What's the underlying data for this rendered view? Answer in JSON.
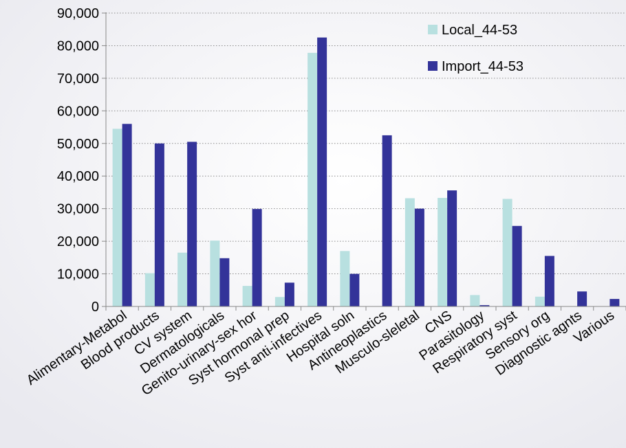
{
  "chart_data": {
    "type": "bar",
    "title": "",
    "xlabel": "",
    "ylabel": "",
    "ylim": [
      0,
      90000
    ],
    "yticks": [
      0,
      10000,
      20000,
      30000,
      40000,
      50000,
      60000,
      70000,
      80000,
      90000
    ],
    "ytick_labels": [
      "0",
      "10,000",
      "20,000",
      "30,000",
      "40,000",
      "50,000",
      "60,000",
      "70,000",
      "80,000",
      "90,000"
    ],
    "grid": "horizontal dotted",
    "legend_position": "top-right",
    "categories": [
      "Alimentary-Metabol",
      "Blood products",
      "CV system",
      "Dermatologicals",
      "Genito-urinary-sex hor",
      "Syst hormonal prep",
      "Syst anti-infectives",
      "Hospital soln",
      "Antineoplastics",
      "Musculo-sleletal",
      "CNS",
      "Parasitology",
      "Respiratory syst",
      "Sensory org",
      "Diagnostic agnts",
      "Various"
    ],
    "series": [
      {
        "name": "Local_44-53",
        "color": "#b8e0e0",
        "values": [
          54500,
          10200,
          16500,
          20200,
          6300,
          2900,
          77800,
          17000,
          0,
          33200,
          33300,
          3500,
          33000,
          3000,
          0,
          0
        ]
      },
      {
        "name": "Import_44-53",
        "color": "#333399",
        "values": [
          56000,
          50000,
          50500,
          14800,
          29900,
          7300,
          82500,
          10000,
          52500,
          30000,
          35600,
          400,
          24700,
          15500,
          4600,
          2300
        ]
      }
    ]
  }
}
